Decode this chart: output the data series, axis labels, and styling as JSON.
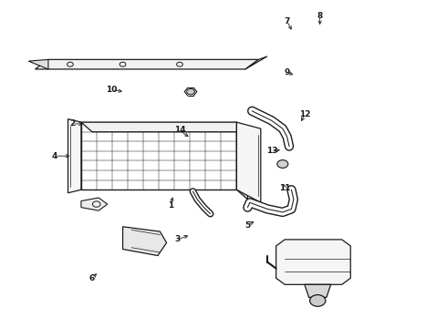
{
  "bg_color": "#ffffff",
  "line_color": "#1a1a1a",
  "figsize": [
    4.9,
    3.6
  ],
  "dpi": 100,
  "labels": {
    "1": [
      0.38,
      0.63,
      0.385,
      0.595
    ],
    "2": [
      0.155,
      0.375,
      0.185,
      0.375
    ],
    "3": [
      0.395,
      0.735,
      0.425,
      0.72
    ],
    "4": [
      0.115,
      0.475,
      0.155,
      0.475
    ],
    "5": [
      0.555,
      0.69,
      0.575,
      0.675
    ],
    "6": [
      0.2,
      0.855,
      0.215,
      0.835
    ],
    "7": [
      0.645,
      0.055,
      0.658,
      0.09
    ],
    "8": [
      0.72,
      0.04,
      0.72,
      0.075
    ],
    "9": [
      0.645,
      0.215,
      0.665,
      0.225
    ],
    "10": [
      0.245,
      0.27,
      0.275,
      0.275
    ],
    "11": [
      0.64,
      0.575,
      0.635,
      0.555
    ],
    "12": [
      0.685,
      0.345,
      0.675,
      0.375
    ],
    "13": [
      0.61,
      0.46,
      0.635,
      0.455
    ],
    "14": [
      0.4,
      0.395,
      0.425,
      0.42
    ]
  }
}
